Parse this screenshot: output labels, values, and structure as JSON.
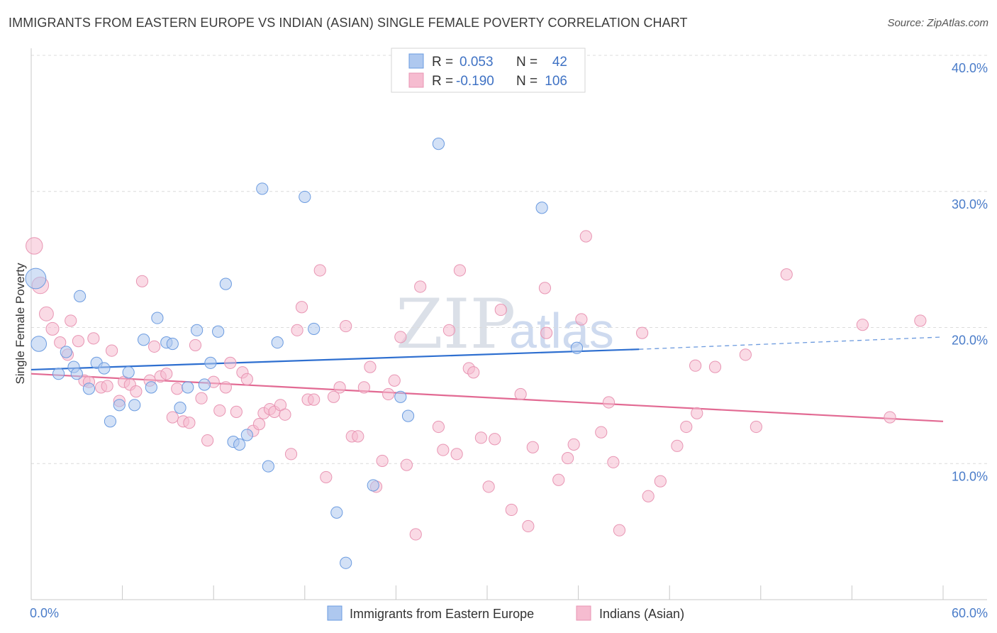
{
  "header": {
    "title": "IMMIGRANTS FROM EASTERN EUROPE VS INDIAN (ASIAN) SINGLE FEMALE POVERTY CORRELATION CHART",
    "source": "Source: ZipAtlas.com"
  },
  "watermark": {
    "zip": "ZIP",
    "atlas": "atlas"
  },
  "legend": {
    "rows": [
      {
        "r_label": "R =",
        "r_value": "0.053",
        "n_label": "N =",
        "n_value": "42"
      },
      {
        "r_label": "R =",
        "r_value": "-0.190",
        "n_label": "N =",
        "n_value": "106"
      }
    ]
  },
  "bottom_legend": {
    "items": [
      {
        "label": "Immigrants from Eastern Europe"
      },
      {
        "label": "Indians (Asian)"
      }
    ]
  },
  "colors": {
    "blue_fill": "#aec8ef",
    "blue_stroke": "#6b9be0",
    "blue_line": "#2e6fd0",
    "pink_fill": "#f6bcd0",
    "pink_stroke": "#e895b3",
    "pink_line": "#e26a93",
    "tick_label": "#4a7cc9"
  },
  "chart_data": {
    "type": "scatter",
    "title": "IMMIGRANTS FROM EASTERN EUROPE VS INDIAN (ASIAN) SINGLE FEMALE POVERTY CORRELATION CHART",
    "xlabel": "",
    "ylabel": "Single Female Poverty",
    "xlim": [
      0,
      60
    ],
    "ylim": [
      0,
      40
    ],
    "x_tick_labels": [
      "0.0%",
      "60.0%"
    ],
    "y_ticks": [
      10,
      20,
      30,
      40
    ],
    "y_tick_labels": [
      "10.0%",
      "20.0%",
      "30.0%",
      "40.0%"
    ],
    "grid": true,
    "legend_position": "top-center",
    "series": [
      {
        "name": "Immigrants from Eastern Europe",
        "R": 0.053,
        "N": 42,
        "trend": {
          "x0": 0,
          "y0": 16.9,
          "x1": 40,
          "y1": 18.4,
          "dashed_to_x": 60,
          "dashed_to_y": 19.3
        },
        "points": [
          [
            0.3,
            23.6,
            1.6
          ],
          [
            0.5,
            18.8,
            1.2
          ],
          [
            1.8,
            16.6,
            0.9
          ],
          [
            2.3,
            18.2,
            0.9
          ],
          [
            2.8,
            17.1,
            0.9
          ],
          [
            3.2,
            22.3,
            0.9
          ],
          [
            3.8,
            15.5,
            0.9
          ],
          [
            4.3,
            17.4,
            0.9
          ],
          [
            4.8,
            17.0,
            0.9
          ],
          [
            5.2,
            13.1,
            0.9
          ],
          [
            5.8,
            14.3,
            0.9
          ],
          [
            6.4,
            16.7,
            0.9
          ],
          [
            6.8,
            14.3,
            0.9
          ],
          [
            7.4,
            19.1,
            0.9
          ],
          [
            7.9,
            15.6,
            0.9
          ],
          [
            8.3,
            20.7,
            0.9
          ],
          [
            8.9,
            18.9,
            0.9
          ],
          [
            9.3,
            18.8,
            0.9
          ],
          [
            9.8,
            14.1,
            0.9
          ],
          [
            10.3,
            15.6,
            0.9
          ],
          [
            10.9,
            19.8,
            0.9
          ],
          [
            11.4,
            15.8,
            0.9
          ],
          [
            11.8,
            17.4,
            0.9
          ],
          [
            12.3,
            19.7,
            0.9
          ],
          [
            12.8,
            23.2,
            0.9
          ],
          [
            13.3,
            11.6,
            0.9
          ],
          [
            13.7,
            11.4,
            0.9
          ],
          [
            14.2,
            12.1,
            0.9
          ],
          [
            15.2,
            30.2,
            0.9
          ],
          [
            15.6,
            9.8,
            0.9
          ],
          [
            16.2,
            18.9,
            0.9
          ],
          [
            18.0,
            29.6,
            0.9
          ],
          [
            18.6,
            19.9,
            0.9
          ],
          [
            20.1,
            6.4,
            0.9
          ],
          [
            20.7,
            2.7,
            0.9
          ],
          [
            22.5,
            8.4,
            0.9
          ],
          [
            24.3,
            14.9,
            0.9
          ],
          [
            24.8,
            13.5,
            0.9
          ],
          [
            26.8,
            33.5,
            0.9
          ],
          [
            33.6,
            28.8,
            0.9
          ],
          [
            35.9,
            18.5,
            0.9
          ],
          [
            3.0,
            16.6,
            0.9
          ]
        ]
      },
      {
        "name": "Indians (Asian)",
        "R": -0.19,
        "N": 106,
        "trend": {
          "x0": 0,
          "y0": 16.6,
          "x1": 60,
          "y1": 13.1
        },
        "points": [
          [
            0.2,
            26.0,
            1.3
          ],
          [
            0.6,
            23.1,
            1.3
          ],
          [
            1.0,
            21.0,
            1.1
          ],
          [
            1.4,
            19.9,
            1.0
          ],
          [
            1.9,
            18.9,
            0.9
          ],
          [
            2.4,
            18.0,
            0.9
          ],
          [
            2.6,
            20.5,
            0.9
          ],
          [
            3.1,
            19.0,
            0.9
          ],
          [
            3.5,
            16.1,
            0.9
          ],
          [
            3.8,
            16.0,
            0.9
          ],
          [
            4.1,
            19.2,
            0.9
          ],
          [
            4.6,
            15.6,
            0.9
          ],
          [
            5.0,
            15.7,
            0.9
          ],
          [
            5.3,
            18.3,
            0.9
          ],
          [
            5.8,
            14.6,
            0.9
          ],
          [
            6.1,
            16.0,
            0.9
          ],
          [
            6.5,
            15.8,
            0.9
          ],
          [
            6.9,
            15.3,
            0.9
          ],
          [
            7.3,
            23.4,
            0.9
          ],
          [
            7.8,
            16.1,
            0.9
          ],
          [
            8.1,
            18.6,
            0.9
          ],
          [
            8.5,
            16.4,
            0.9
          ],
          [
            8.9,
            16.6,
            0.9
          ],
          [
            9.3,
            13.4,
            0.9
          ],
          [
            9.6,
            15.5,
            0.9
          ],
          [
            10.0,
            13.1,
            0.9
          ],
          [
            10.4,
            13.0,
            0.9
          ],
          [
            10.8,
            18.7,
            0.9
          ],
          [
            11.2,
            14.8,
            0.9
          ],
          [
            11.6,
            11.7,
            0.9
          ],
          [
            12.0,
            16.0,
            0.9
          ],
          [
            12.4,
            13.9,
            0.9
          ],
          [
            12.8,
            15.6,
            0.9
          ],
          [
            13.1,
            17.4,
            0.9
          ],
          [
            13.5,
            13.8,
            0.9
          ],
          [
            13.9,
            16.7,
            0.9
          ],
          [
            14.2,
            16.2,
            0.9
          ],
          [
            14.6,
            12.4,
            0.9
          ],
          [
            15.0,
            12.9,
            0.9
          ],
          [
            15.3,
            13.7,
            0.9
          ],
          [
            15.7,
            14.0,
            0.9
          ],
          [
            16.0,
            13.8,
            0.9
          ],
          [
            16.4,
            14.3,
            0.9
          ],
          [
            16.7,
            13.6,
            0.9
          ],
          [
            17.1,
            10.7,
            0.9
          ],
          [
            17.5,
            19.8,
            0.9
          ],
          [
            17.8,
            21.5,
            0.9
          ],
          [
            18.2,
            14.7,
            0.9
          ],
          [
            18.6,
            14.7,
            0.9
          ],
          [
            19.0,
            24.2,
            0.9
          ],
          [
            19.4,
            9.0,
            0.9
          ],
          [
            19.9,
            14.9,
            0.9
          ],
          [
            20.3,
            15.6,
            0.9
          ],
          [
            20.7,
            20.1,
            0.9
          ],
          [
            21.1,
            12.0,
            0.9
          ],
          [
            21.5,
            12.0,
            0.9
          ],
          [
            21.9,
            15.6,
            0.9
          ],
          [
            22.3,
            17.1,
            0.9
          ],
          [
            22.7,
            8.3,
            0.9
          ],
          [
            23.1,
            10.2,
            0.9
          ],
          [
            23.5,
            15.1,
            0.9
          ],
          [
            23.9,
            16.1,
            0.9
          ],
          [
            24.3,
            19.3,
            0.9
          ],
          [
            24.7,
            9.9,
            0.9
          ],
          [
            25.3,
            4.8,
            0.9
          ],
          [
            25.6,
            23.0,
            0.9
          ],
          [
            26.8,
            12.7,
            0.9
          ],
          [
            27.1,
            11.0,
            0.9
          ],
          [
            27.5,
            19.8,
            0.9
          ],
          [
            28.0,
            10.7,
            0.9
          ],
          [
            28.2,
            24.2,
            0.9
          ],
          [
            28.8,
            17.0,
            0.9
          ],
          [
            29.1,
            16.7,
            0.9
          ],
          [
            29.6,
            11.9,
            0.9
          ],
          [
            30.1,
            8.3,
            0.9
          ],
          [
            30.5,
            11.8,
            0.9
          ],
          [
            30.9,
            21.3,
            0.9
          ],
          [
            31.6,
            6.6,
            0.9
          ],
          [
            32.2,
            15.1,
            0.9
          ],
          [
            32.7,
            5.4,
            0.9
          ],
          [
            33.0,
            11.2,
            0.9
          ],
          [
            33.8,
            22.9,
            0.9
          ],
          [
            33.9,
            19.6,
            0.9
          ],
          [
            34.7,
            8.8,
            0.9
          ],
          [
            35.3,
            10.4,
            0.9
          ],
          [
            35.7,
            11.4,
            0.9
          ],
          [
            36.2,
            20.6,
            0.9
          ],
          [
            36.5,
            26.7,
            0.9
          ],
          [
            37.5,
            12.3,
            0.9
          ],
          [
            38.0,
            14.5,
            0.9
          ],
          [
            38.3,
            10.1,
            0.9
          ],
          [
            38.7,
            5.1,
            0.9
          ],
          [
            40.2,
            19.6,
            0.9
          ],
          [
            40.6,
            7.6,
            0.9
          ],
          [
            41.4,
            8.7,
            0.9
          ],
          [
            42.5,
            11.3,
            0.9
          ],
          [
            43.1,
            12.7,
            0.9
          ],
          [
            43.7,
            17.2,
            0.9
          ],
          [
            43.8,
            13.7,
            0.9
          ],
          [
            45.0,
            17.1,
            0.9
          ],
          [
            47.0,
            18.0,
            0.9
          ],
          [
            47.7,
            12.7,
            0.9
          ],
          [
            49.7,
            23.9,
            0.9
          ],
          [
            54.7,
            20.2,
            0.9
          ],
          [
            56.5,
            13.4,
            0.9
          ],
          [
            58.5,
            20.5,
            0.9
          ]
        ]
      }
    ]
  }
}
